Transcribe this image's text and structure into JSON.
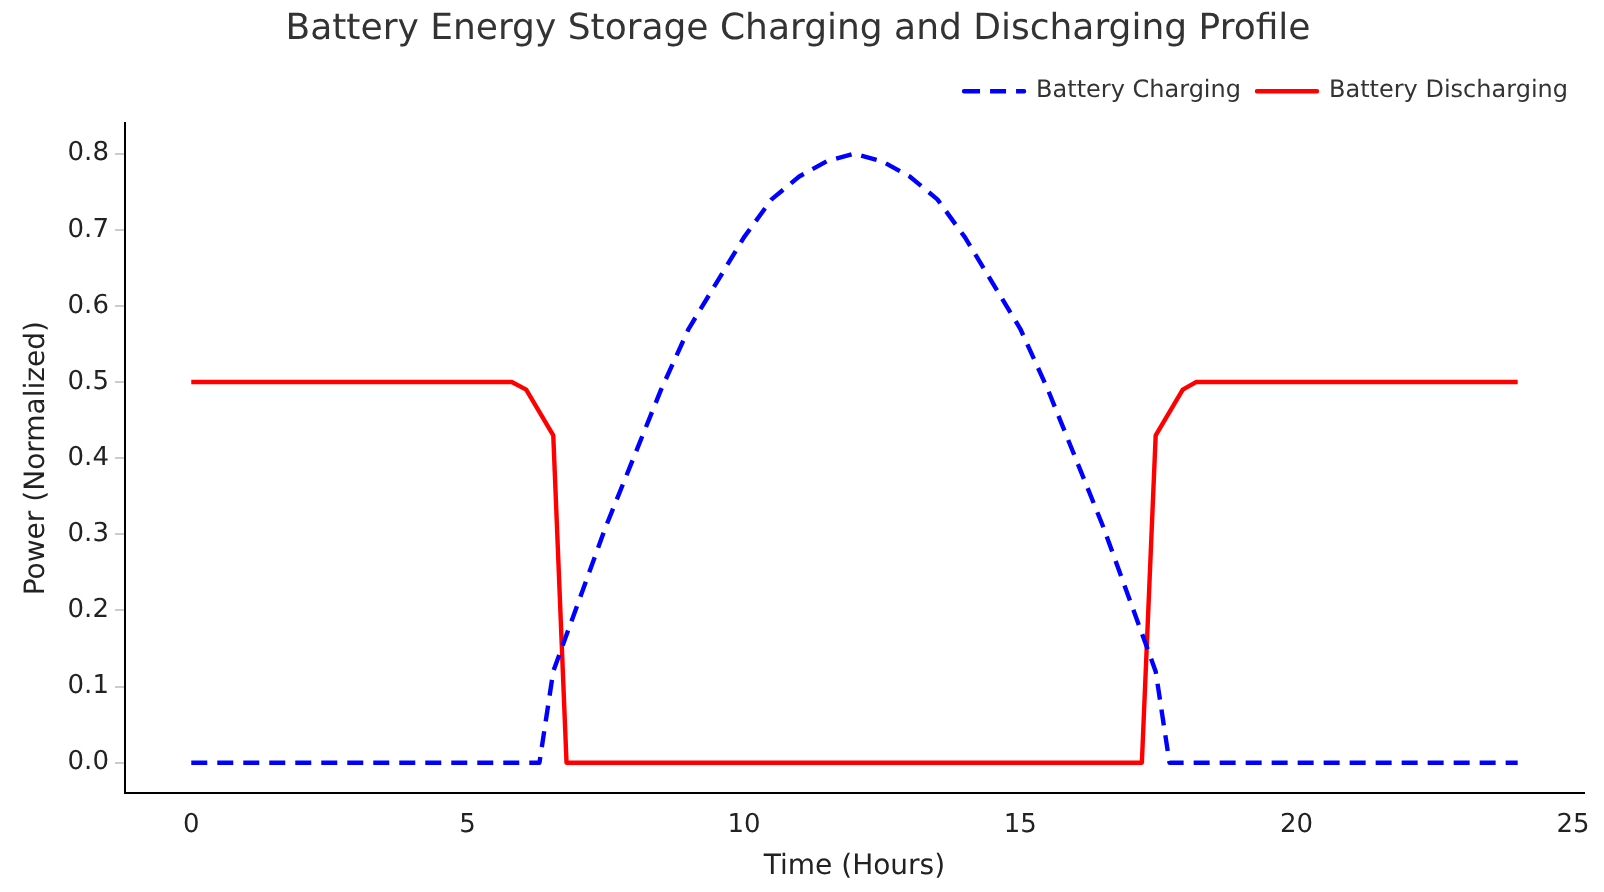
{
  "chart_data": {
    "type": "line",
    "title": "Battery Energy Storage Charging and Discharging Profile",
    "xlabel": "Time (Hours)",
    "ylabel": "Power (Normalized)",
    "xlim": [
      -1.2,
      25.2
    ],
    "xticks": [
      0,
      5,
      10,
      15,
      20,
      25
    ],
    "ylim": [
      -0.04,
      0.84
    ],
    "yticks": [
      {
        "value": 0,
        "label": "0.0"
      },
      0.1,
      0.2,
      0.3,
      0.4,
      0.5,
      0.6,
      0.7,
      0.8
    ],
    "grid": false,
    "legend": "top right",
    "marker": "none",
    "series": [
      {
        "name": "Battery Charging",
        "color": "#0000ff",
        "line_style": "dashed",
        "x": [
          0,
          6.3,
          6.55,
          6.8,
          7,
          7.5,
          8,
          8.5,
          9,
          9.5,
          10,
          10.5,
          11,
          11.5,
          12,
          12.5,
          13,
          13.5,
          14,
          14.5,
          15,
          15.5,
          16,
          16.5,
          17,
          17.2,
          17.45,
          17.7,
          24
        ],
        "values": [
          0,
          0,
          0.12,
          0.17,
          0.21,
          0.31,
          0.4,
          0.49,
          0.57,
          0.63,
          0.69,
          0.74,
          0.77,
          0.79,
          0.8,
          0.79,
          0.77,
          0.74,
          0.69,
          0.63,
          0.57,
          0.49,
          0.4,
          0.31,
          0.21,
          0.17,
          0.12,
          0,
          0
        ]
      },
      {
        "name": "Battery Discharging",
        "color": "#ff0000",
        "line_style": "solid",
        "x": [
          0,
          5.8,
          6.06,
          6.55,
          6.79,
          17.2,
          17.45,
          17.94,
          18.18,
          24
        ],
        "values": [
          0.5,
          0.5,
          0.49,
          0.43,
          0,
          0,
          0.43,
          0.49,
          0.5,
          0.5
        ]
      }
    ]
  }
}
